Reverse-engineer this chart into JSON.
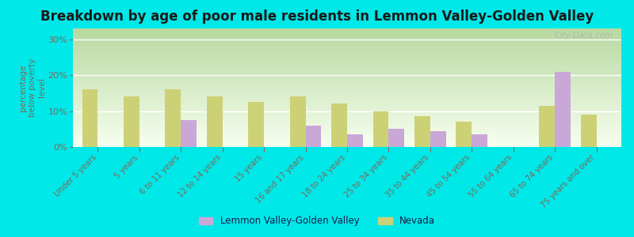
{
  "title": "Breakdown by age of poor male residents in Lemmon Valley-Golden Valley",
  "categories": [
    "Under 5 years",
    "5 years",
    "6 to 11 years",
    "12 to 14 years",
    "15 years",
    "16 and 17 years",
    "18 to 24 years",
    "25 to 34 years",
    "35 to 44 years",
    "45 to 54 years",
    "55 to 64 years",
    "65 to 74 years",
    "75 years and over"
  ],
  "lemmon_values": [
    null,
    null,
    7.5,
    null,
    null,
    6.0,
    3.5,
    5.0,
    4.5,
    3.5,
    null,
    21.0,
    null
  ],
  "nevada_values": [
    16.0,
    14.0,
    16.0,
    14.0,
    12.5,
    14.0,
    12.0,
    10.0,
    8.5,
    7.0,
    null,
    11.5,
    9.0
  ],
  "lemmon_color": "#c9a8d8",
  "nevada_color": "#cdd176",
  "background_color": "#00e8e8",
  "plot_bg_top": "#b8d8a0",
  "plot_bg_bottom": "#f8fef0",
  "ylabel": "percentage\nbelow poverty\nlevel",
  "ylim": [
    0,
    33
  ],
  "yticks": [
    0,
    10,
    20,
    30
  ],
  "bar_width": 0.38,
  "title_fontsize": 12,
  "tick_color": "#7a6a5a",
  "legend_text_color": "#1a1a4a",
  "watermark": "City-Data.com"
}
